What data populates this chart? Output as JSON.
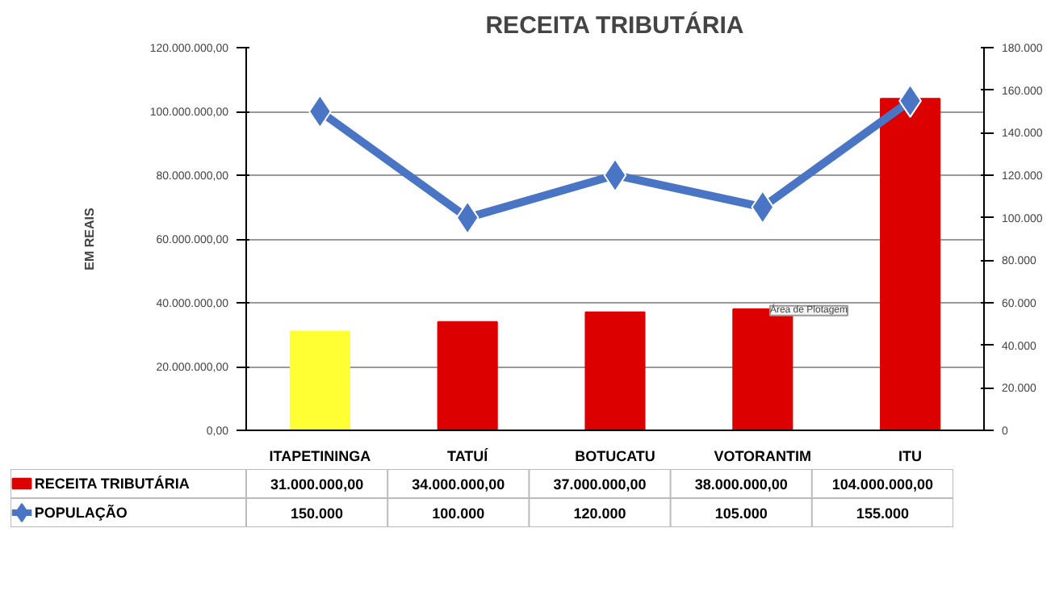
{
  "chart_data": {
    "type": "bar",
    "title": "RECEITA TRIBUTÁRIA",
    "ylabel": "EM REAIS",
    "categories": [
      "ITAPETININGA",
      "TATUÍ",
      "BOTUCATU",
      "VOTORANTIM",
      "ITU"
    ],
    "series": [
      {
        "name": "RECEITA TRIBUTÁRIA",
        "color": "#dd0000",
        "colors": [
          "#ffff33",
          "#dd0000",
          "#dd0000",
          "#dd0000",
          "#dd0000"
        ],
        "values": [
          31000000,
          34000000,
          37000000,
          38000000,
          104000000
        ],
        "value_labels": [
          "31.000.000,00",
          "34.000.000,00",
          "37.000.000,00",
          "38.000.000,00",
          "104.000.000,00"
        ]
      },
      {
        "name": "POPULAÇÃO",
        "type": "line",
        "axis": "y2",
        "color": "#4a74c4",
        "marker": "diamond",
        "values": [
          150000,
          100000,
          120000,
          105000,
          155000
        ],
        "value_labels": [
          "150.000",
          "100.000",
          "120.000",
          "105.000",
          "155.000"
        ]
      }
    ],
    "ylim": [
      0,
      120000000
    ],
    "yticks": [
      {
        "value": 0,
        "label": "0,00"
      },
      {
        "value": 20000000,
        "label": "20.000.000,00"
      },
      {
        "value": 40000000,
        "label": "40.000.000,00"
      },
      {
        "value": 60000000,
        "label": "60.000.000,00"
      },
      {
        "value": 80000000,
        "label": "80.000.000,00"
      },
      {
        "value": 100000000,
        "label": "100.000.000,00"
      },
      {
        "value": 120000000,
        "label": "120.000.000,00"
      }
    ],
    "y2lim": [
      0,
      180000
    ],
    "y2ticks": [
      {
        "value": 0,
        "label": "0"
      },
      {
        "value": 20000,
        "label": "20.000"
      },
      {
        "value": 40000,
        "label": "40.000"
      },
      {
        "value": 60000,
        "label": "60.000"
      },
      {
        "value": 80000,
        "label": "80.000"
      },
      {
        "value": 100000,
        "label": "100.000"
      },
      {
        "value": 120000,
        "label": "120.000"
      },
      {
        "value": 140000,
        "label": "140.000"
      },
      {
        "value": 160000,
        "label": "160.000"
      },
      {
        "value": 180000,
        "label": "180.000"
      }
    ],
    "grid": "y",
    "legend": "bottom",
    "annotations": [
      "Área de Plotagem"
    ]
  }
}
